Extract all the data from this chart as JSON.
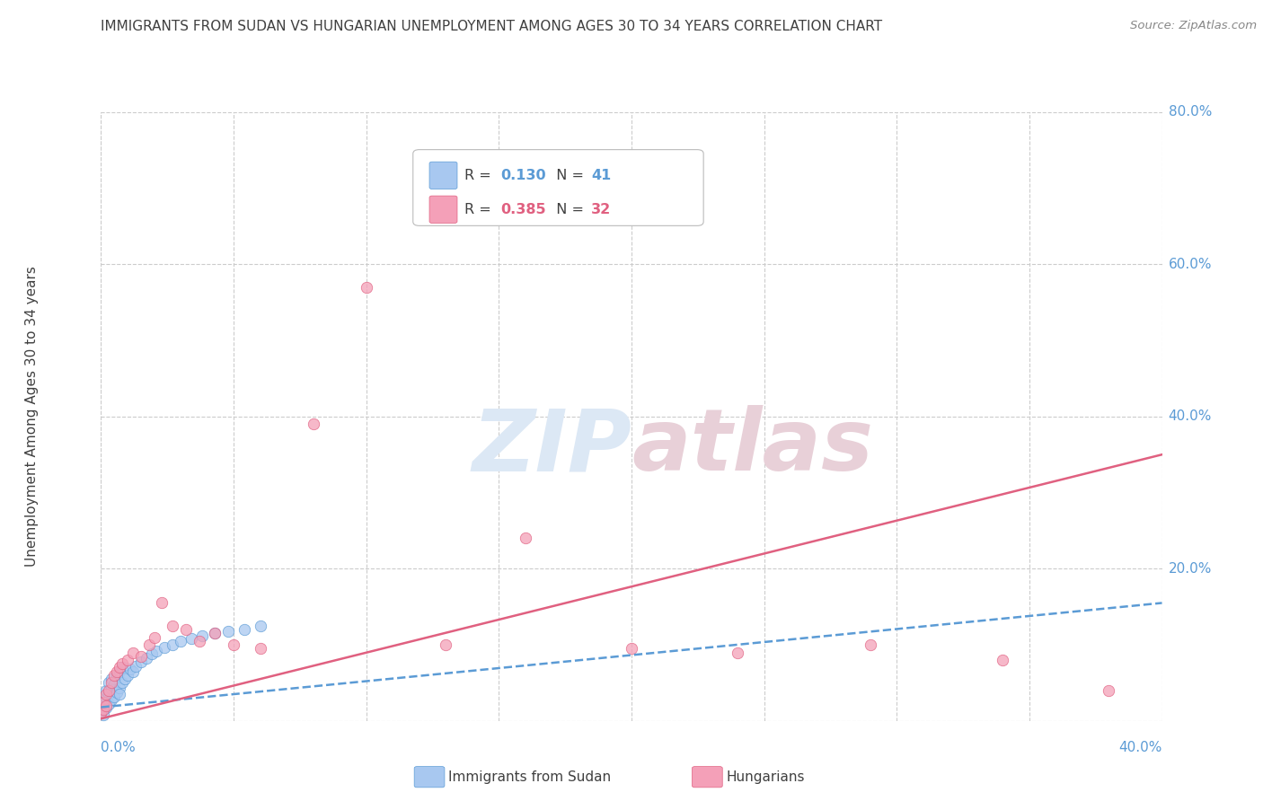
{
  "title": "IMMIGRANTS FROM SUDAN VS HUNGARIAN UNEMPLOYMENT AMONG AGES 30 TO 34 YEARS CORRELATION CHART",
  "source": "Source: ZipAtlas.com",
  "ylabel": "Unemployment Among Ages 30 to 34 years",
  "legend1_r": "0.130",
  "legend1_n": "41",
  "legend2_r": "0.385",
  "legend2_n": "32",
  "blue_color": "#a8c8f0",
  "pink_color": "#f4a0b8",
  "blue_edge_color": "#5b9bd5",
  "pink_edge_color": "#e06080",
  "blue_line_color": "#5b9bd5",
  "pink_line_color": "#e06080",
  "axis_tick_color": "#5b9bd5",
  "watermark_zip_color": "#dce8f5",
  "watermark_atlas_color": "#e8d0d8",
  "title_color": "#404040",
  "source_color": "#888888",
  "grid_color": "#cccccc",
  "blue_x": [
    0.0,
    0.001,
    0.001,
    0.001,
    0.002,
    0.002,
    0.002,
    0.003,
    0.003,
    0.003,
    0.004,
    0.004,
    0.004,
    0.005,
    0.005,
    0.006,
    0.006,
    0.007,
    0.007,
    0.008,
    0.008,
    0.009,
    0.01,
    0.011,
    0.012,
    0.013,
    0.015,
    0.017,
    0.019,
    0.021,
    0.024,
    0.027,
    0.03,
    0.034,
    0.038,
    0.043,
    0.048,
    0.054,
    0.06,
    0.007,
    0.001
  ],
  "blue_y": [
    0.01,
    0.015,
    0.02,
    0.025,
    0.018,
    0.03,
    0.04,
    0.022,
    0.035,
    0.05,
    0.028,
    0.042,
    0.055,
    0.032,
    0.048,
    0.038,
    0.06,
    0.044,
    0.065,
    0.05,
    0.07,
    0.055,
    0.06,
    0.068,
    0.065,
    0.072,
    0.078,
    0.082,
    0.088,
    0.092,
    0.096,
    0.1,
    0.105,
    0.108,
    0.112,
    0.115,
    0.118,
    0.12,
    0.125,
    0.035,
    0.008
  ],
  "pink_x": [
    0.0,
    0.001,
    0.001,
    0.002,
    0.002,
    0.003,
    0.004,
    0.005,
    0.006,
    0.007,
    0.008,
    0.01,
    0.012,
    0.015,
    0.018,
    0.02,
    0.023,
    0.027,
    0.032,
    0.037,
    0.043,
    0.05,
    0.06,
    0.08,
    0.1,
    0.13,
    0.16,
    0.2,
    0.24,
    0.29,
    0.34,
    0.38
  ],
  "pink_y": [
    0.01,
    0.015,
    0.025,
    0.02,
    0.035,
    0.04,
    0.05,
    0.06,
    0.065,
    0.07,
    0.075,
    0.08,
    0.09,
    0.085,
    0.1,
    0.11,
    0.155,
    0.125,
    0.12,
    0.105,
    0.115,
    0.1,
    0.095,
    0.39,
    0.57,
    0.1,
    0.24,
    0.095,
    0.09,
    0.1,
    0.08,
    0.04
  ],
  "blue_trend_x": [
    0.0,
    0.4
  ],
  "blue_trend_y": [
    0.018,
    0.155
  ],
  "pink_trend_x": [
    0.0,
    0.4
  ],
  "pink_trend_y": [
    0.003,
    0.35
  ],
  "xlim": [
    0.0,
    0.4
  ],
  "ylim": [
    0.0,
    0.8
  ],
  "xtick_positions": [
    0.0,
    0.4
  ],
  "xtick_labels": [
    "0.0%",
    "40.0%"
  ],
  "ytick_positions": [
    0.2,
    0.4,
    0.6,
    0.8
  ],
  "ytick_labels": [
    "20.0%",
    "40.0%",
    "60.0%",
    "80.0%"
  ],
  "figsize": [
    14.06,
    8.92
  ],
  "dpi": 100
}
